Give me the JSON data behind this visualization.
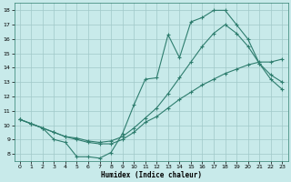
{
  "xlabel": "Humidex (Indice chaleur)",
  "x_ticks": [
    0,
    1,
    2,
    3,
    4,
    5,
    6,
    7,
    8,
    9,
    10,
    11,
    12,
    13,
    14,
    15,
    16,
    17,
    18,
    19,
    20,
    21,
    22,
    23
  ],
  "y_ticks": [
    8,
    9,
    10,
    11,
    12,
    13,
    14,
    15,
    16,
    17,
    18
  ],
  "xlim": [
    -0.5,
    23.5
  ],
  "ylim": [
    7.5,
    18.5
  ],
  "bg_color": "#c8eaea",
  "grid_color": "#a0c8c8",
  "line_color": "#2e7d6e",
  "line1_x": [
    0,
    1,
    2,
    3,
    4,
    5,
    6,
    7,
    8,
    9,
    10,
    11,
    12,
    13,
    14,
    15,
    16,
    17,
    18,
    19,
    20,
    21,
    22,
    23
  ],
  "line1_y": [
    10.4,
    10.1,
    9.8,
    9.0,
    8.8,
    7.8,
    7.8,
    7.7,
    8.1,
    9.4,
    11.4,
    13.2,
    13.3,
    16.3,
    14.7,
    17.2,
    17.5,
    18.0,
    18.0,
    17.0,
    16.0,
    14.3,
    13.5,
    13.0
  ],
  "line2_x": [
    0,
    1,
    2,
    3,
    4,
    5,
    6,
    7,
    8,
    9,
    10,
    11,
    12,
    13,
    14,
    15,
    16,
    17,
    18,
    19,
    20,
    21,
    22,
    23
  ],
  "line2_y": [
    10.4,
    10.1,
    9.8,
    9.5,
    9.2,
    9.0,
    8.8,
    8.7,
    8.7,
    9.0,
    9.5,
    10.2,
    10.6,
    11.2,
    11.8,
    12.3,
    12.8,
    13.2,
    13.6,
    13.9,
    14.2,
    14.4,
    14.4,
    14.6
  ],
  "line3_x": [
    0,
    1,
    2,
    3,
    4,
    5,
    6,
    7,
    8,
    9,
    10,
    11,
    12,
    13,
    14,
    15,
    16,
    17,
    18,
    19,
    20,
    21,
    22,
    23
  ],
  "line3_y": [
    10.4,
    10.1,
    9.8,
    9.5,
    9.2,
    9.1,
    8.9,
    8.8,
    8.9,
    9.2,
    9.8,
    10.5,
    11.2,
    12.2,
    13.3,
    14.4,
    15.5,
    16.4,
    17.0,
    16.4,
    15.5,
    14.3,
    13.2,
    12.5
  ]
}
